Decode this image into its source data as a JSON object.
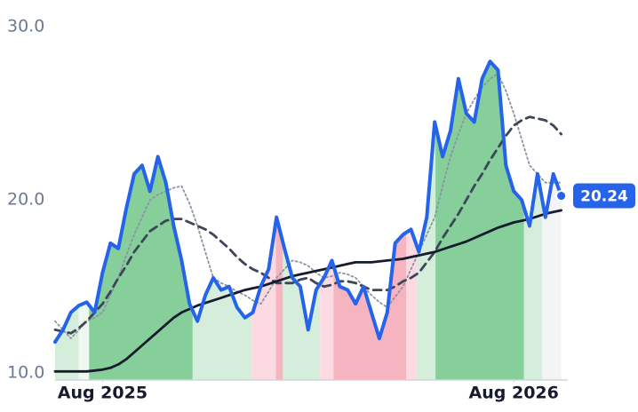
{
  "chart_data": {
    "type": "line",
    "x": [
      0,
      1,
      2,
      3,
      4,
      5,
      6,
      7,
      8,
      9,
      10,
      11,
      12,
      13,
      14,
      15,
      16,
      17,
      18,
      19,
      20,
      21,
      22,
      23,
      24,
      25,
      26,
      27,
      28,
      29,
      30,
      31,
      32,
      33,
      34,
      35,
      36,
      37,
      38,
      39,
      40,
      41,
      42,
      43,
      44,
      45,
      46,
      47,
      48,
      49,
      50,
      51,
      52,
      53,
      54,
      55,
      56,
      57,
      58,
      59,
      60,
      61,
      62,
      63,
      64
    ],
    "xlim": [
      0,
      65
    ],
    "xticks": [
      {
        "value": 6,
        "label": "Aug 2025"
      },
      {
        "value": 58,
        "label": "Aug 2026"
      }
    ],
    "ylim": [
      9.6,
      30.4
    ],
    "yticks": [
      {
        "value": 10,
        "label": "10.0"
      },
      {
        "value": 20,
        "label": "20.0"
      },
      {
        "value": 30,
        "label": "30.0"
      }
    ],
    "zones": [
      {
        "start": 0,
        "end": 3,
        "color": "#d5eedc"
      },
      {
        "start": 3,
        "end": 4.3,
        "color": "#eef8f1"
      },
      {
        "start": 4.3,
        "end": 17.4,
        "color": "#86cf9a"
      },
      {
        "start": 17.4,
        "end": 24.8,
        "color": "#d5eedc"
      },
      {
        "start": 24.8,
        "end": 27.9,
        "color": "#fbdbe1"
      },
      {
        "start": 27.9,
        "end": 28.8,
        "color": "#f6b3c0"
      },
      {
        "start": 28.8,
        "end": 33.5,
        "color": "#d5eedc"
      },
      {
        "start": 33.5,
        "end": 35.2,
        "color": "#fbdbe1"
      },
      {
        "start": 35.2,
        "end": 44.4,
        "color": "#f6b3c0"
      },
      {
        "start": 44.4,
        "end": 45.8,
        "color": "#fbdbe1"
      },
      {
        "start": 45.8,
        "end": 48.1,
        "color": "#d5eedc"
      },
      {
        "start": 48.1,
        "end": 59.3,
        "color": "#86cf9a"
      },
      {
        "start": 59.3,
        "end": 61.6,
        "color": "#d5eedc"
      },
      {
        "start": 61.6,
        "end": 64,
        "color": "#f3f4f6"
      }
    ],
    "series": [
      {
        "color": "#8a94a3",
        "dash": "dotted",
        "values": [
          13.0,
          12.5,
          12.0,
          12.5,
          13.0,
          13.2,
          13.5,
          14.5,
          15.5,
          16.8,
          18.0,
          19.0,
          20.0,
          20.3,
          20.5,
          20.7,
          20.8,
          19.8,
          18.5,
          17.0,
          15.5,
          15.2,
          15.0,
          14.7,
          14.5,
          14.2,
          14.0,
          14.7,
          15.5,
          16.0,
          16.5,
          16.4,
          16.2,
          15.8,
          15.5,
          15.6,
          15.8,
          15.7,
          15.5,
          15.0,
          14.5,
          14.1,
          13.8,
          14.4,
          15.0,
          16.0,
          17.0,
          18.0,
          19.0,
          20.8,
          22.5,
          23.8,
          25.0,
          25.8,
          26.5,
          27.0,
          27.3,
          26.3,
          25.0,
          23.5,
          22.0,
          21.5,
          21.0,
          21.0,
          21.0
        ]
      },
      {
        "color": "#3c4658",
        "dash": "dashed",
        "values": [
          12.5,
          12.4,
          12.3,
          12.6,
          13.0,
          13.5,
          14.0,
          14.7,
          15.5,
          16.2,
          17.0,
          17.6,
          18.2,
          18.5,
          18.8,
          18.9,
          18.9,
          18.7,
          18.5,
          18.3,
          18.0,
          17.6,
          17.2,
          16.7,
          16.3,
          16.0,
          15.8,
          15.5,
          15.2,
          15.2,
          15.2,
          15.4,
          15.5,
          15.2,
          15.0,
          15.1,
          15.3,
          15.3,
          15.2,
          15.0,
          14.8,
          14.8,
          14.8,
          15.0,
          15.3,
          15.5,
          15.8,
          16.4,
          17.0,
          17.8,
          18.5,
          19.2,
          20.0,
          20.8,
          21.5,
          22.3,
          23.0,
          23.7,
          24.3,
          24.6,
          24.8,
          24.7,
          24.6,
          24.3,
          23.8
        ]
      },
      {
        "color": "#161b2e",
        "dash": "solid",
        "values": [
          10.1,
          10.1,
          10.1,
          10.1,
          10.1,
          10.15,
          10.2,
          10.3,
          10.5,
          10.8,
          11.2,
          11.6,
          12.0,
          12.4,
          12.8,
          13.2,
          13.5,
          13.7,
          13.9,
          14.05,
          14.2,
          14.35,
          14.5,
          14.65,
          14.8,
          14.9,
          15.0,
          15.15,
          15.3,
          15.45,
          15.6,
          15.7,
          15.8,
          15.9,
          16.0,
          16.1,
          16.2,
          16.3,
          16.4,
          16.4,
          16.4,
          16.45,
          16.5,
          16.55,
          16.6,
          16.7,
          16.8,
          16.9,
          17.0,
          17.15,
          17.3,
          17.45,
          17.6,
          17.8,
          18.0,
          18.2,
          18.4,
          18.55,
          18.7,
          18.8,
          18.9,
          19.05,
          19.2,
          19.3,
          19.4
        ]
      },
      {
        "color": "#2563eb",
        "dash": "solid",
        "values": [
          11.8,
          12.5,
          13.5,
          13.9,
          14.1,
          13.5,
          15.8,
          17.5,
          17.2,
          19.5,
          21.5,
          22.0,
          20.5,
          22.5,
          21.0,
          18.5,
          16.5,
          14.0,
          13.0,
          14.5,
          15.5,
          14.8,
          15.0,
          13.8,
          13.2,
          13.5,
          15.0,
          16.0,
          19.0,
          17.2,
          15.5,
          15.0,
          12.5,
          14.8,
          15.5,
          16.5,
          15.0,
          14.8,
          14.0,
          15.0,
          13.5,
          12.0,
          13.5,
          17.5,
          18.0,
          18.3,
          17.0,
          19.0,
          24.5,
          22.5,
          24.0,
          27.0,
          25.0,
          24.5,
          27.0,
          28.0,
          27.5,
          22.0,
          20.5,
          20.0,
          18.5,
          21.5,
          19.0,
          21.5,
          20.24
        ]
      }
    ]
  }
}
